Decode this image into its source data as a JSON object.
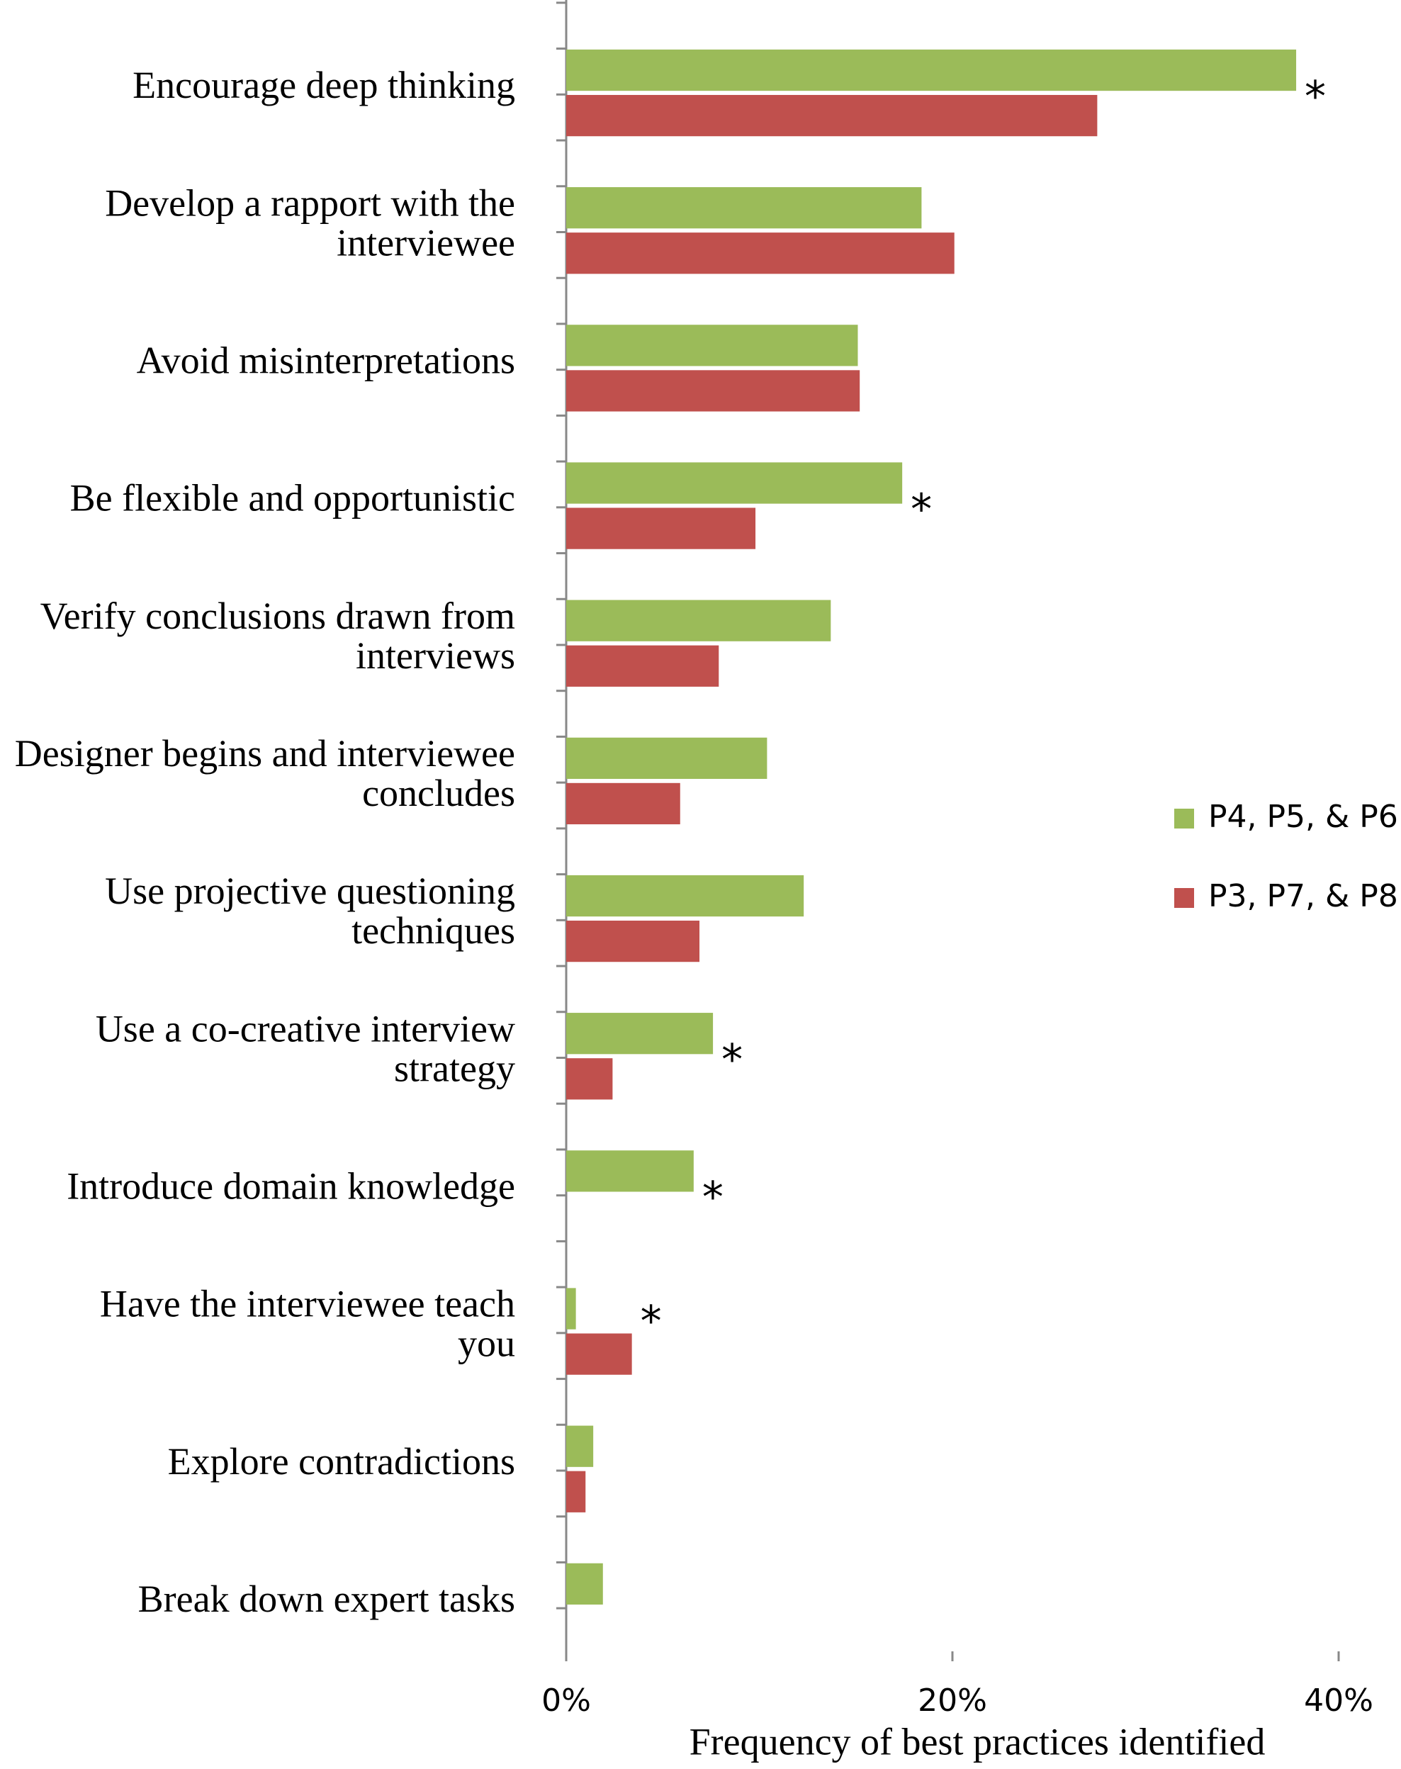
{
  "chart_data": {
    "type": "barh",
    "x_label": "Frequency of best practices identified",
    "categories": [
      [
        "Encourage deep thinking"
      ],
      [
        "Develop a rapport with the",
        "interviewee"
      ],
      [
        "Avoid misinterpretations"
      ],
      [
        "Be flexible and opportunistic"
      ],
      [
        "Verify conclusions drawn from",
        "interviews"
      ],
      [
        "Designer begins and interviewee",
        "concludes"
      ],
      [
        "Use projective questioning",
        "techniques"
      ],
      [
        "Use a co-creative interview",
        "strategy"
      ],
      [
        "Introduce domain knowledge"
      ],
      [
        "Have the interviewee teach",
        "you"
      ],
      [
        "Explore contradictions"
      ],
      [
        "Break down expert tasks"
      ]
    ],
    "series": [
      {
        "name": "P4, P5, & P6",
        "color": "#9bbb59",
        "values": [
          37.8,
          18.4,
          15.1,
          17.4,
          13.7,
          10.4,
          12.3,
          7.6,
          6.6,
          0.5,
          1.4,
          1.9
        ]
      },
      {
        "name": "P3, P7, & P8",
        "color": "#c0504d",
        "values": [
          27.5,
          20.1,
          15.2,
          9.8,
          7.9,
          5.9,
          6.9,
          2.4,
          0,
          3.4,
          1.0,
          0
        ]
      }
    ],
    "annotations": [
      {
        "series": 0,
        "index": 0,
        "text": "*"
      },
      {
        "series": 0,
        "index": 3,
        "text": "*"
      },
      {
        "series": 0,
        "index": 7,
        "text": "*"
      },
      {
        "series": 0,
        "index": 8,
        "text": "*"
      },
      {
        "series": 1,
        "index": 9,
        "text": "*"
      }
    ],
    "xlim": [
      0,
      40
    ],
    "xticks": [
      {
        "value": 0,
        "label": "0%"
      },
      {
        "value": 20,
        "label": "20%"
      },
      {
        "value": 40,
        "label": "40%"
      }
    ],
    "legend": "right"
  }
}
